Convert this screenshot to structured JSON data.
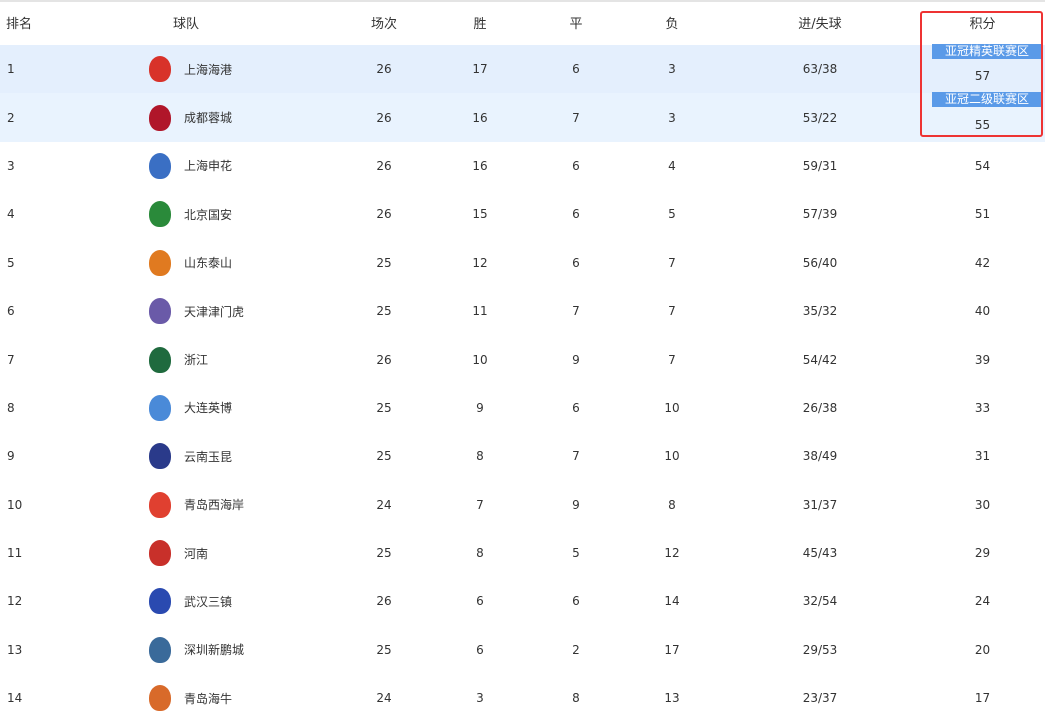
{
  "headers": [
    "排名",
    "球队",
    "场次",
    "胜",
    "平",
    "负",
    "进/失球",
    "积分"
  ],
  "zones": [
    {
      "label": "亚冠精英联赛区",
      "color": "#5a9ae8"
    },
    {
      "label": "亚冠二级联赛区",
      "color": "#5a9ae8"
    }
  ],
  "rows": [
    {
      "rank": "1",
      "team": "上海海港",
      "played": "26",
      "won": "17",
      "drawn": "6",
      "lost": "3",
      "goals": "63/38",
      "points": "57",
      "logo_color": "#d8322a"
    },
    {
      "rank": "2",
      "team": "成都蓉城",
      "played": "26",
      "won": "16",
      "drawn": "7",
      "lost": "3",
      "goals": "53/22",
      "points": "55",
      "logo_color": "#b0162a"
    },
    {
      "rank": "3",
      "team": "上海申花",
      "played": "26",
      "won": "16",
      "drawn": "6",
      "lost": "4",
      "goals": "59/31",
      "points": "54",
      "logo_color": "#3a6fc4"
    },
    {
      "rank": "4",
      "team": "北京国安",
      "played": "26",
      "won": "15",
      "drawn": "6",
      "lost": "5",
      "goals": "57/39",
      "points": "51",
      "logo_color": "#2a8a3a"
    },
    {
      "rank": "5",
      "team": "山东泰山",
      "played": "25",
      "won": "12",
      "drawn": "6",
      "lost": "7",
      "goals": "56/40",
      "points": "42",
      "logo_color": "#e07a20"
    },
    {
      "rank": "6",
      "team": "天津津门虎",
      "played": "25",
      "won": "11",
      "drawn": "7",
      "lost": "7",
      "goals": "35/32",
      "points": "40",
      "logo_color": "#6a5aa8"
    },
    {
      "rank": "7",
      "team": "浙江",
      "played": "26",
      "won": "10",
      "drawn": "9",
      "lost": "7",
      "goals": "54/42",
      "points": "39",
      "logo_color": "#1f6a3e"
    },
    {
      "rank": "8",
      "team": "大连英博",
      "played": "25",
      "won": "9",
      "drawn": "6",
      "lost": "10",
      "goals": "26/38",
      "points": "33",
      "logo_color": "#4a8ad8"
    },
    {
      "rank": "9",
      "team": "云南玉昆",
      "played": "25",
      "won": "8",
      "drawn": "7",
      "lost": "10",
      "goals": "38/49",
      "points": "31",
      "logo_color": "#2a3a8a"
    },
    {
      "rank": "10",
      "team": "青岛西海岸",
      "played": "24",
      "won": "7",
      "drawn": "9",
      "lost": "8",
      "goals": "31/37",
      "points": "30",
      "logo_color": "#e04030"
    },
    {
      "rank": "11",
      "team": "河南",
      "played": "25",
      "won": "8",
      "drawn": "5",
      "lost": "12",
      "goals": "45/43",
      "points": "29",
      "logo_color": "#c8302a"
    },
    {
      "rank": "12",
      "team": "武汉三镇",
      "played": "26",
      "won": "6",
      "drawn": "6",
      "lost": "14",
      "goals": "32/54",
      "points": "24",
      "logo_color": "#2a4ab0"
    },
    {
      "rank": "13",
      "team": "深圳新鹏城",
      "played": "25",
      "won": "6",
      "drawn": "2",
      "lost": "17",
      "goals": "29/53",
      "points": "20",
      "logo_color": "#3a6a9a"
    },
    {
      "rank": "14",
      "team": "青岛海牛",
      "played": "24",
      "won": "3",
      "drawn": "8",
      "lost": "13",
      "goals": "23/37",
      "points": "17",
      "logo_color": "#d86a2a"
    }
  ]
}
